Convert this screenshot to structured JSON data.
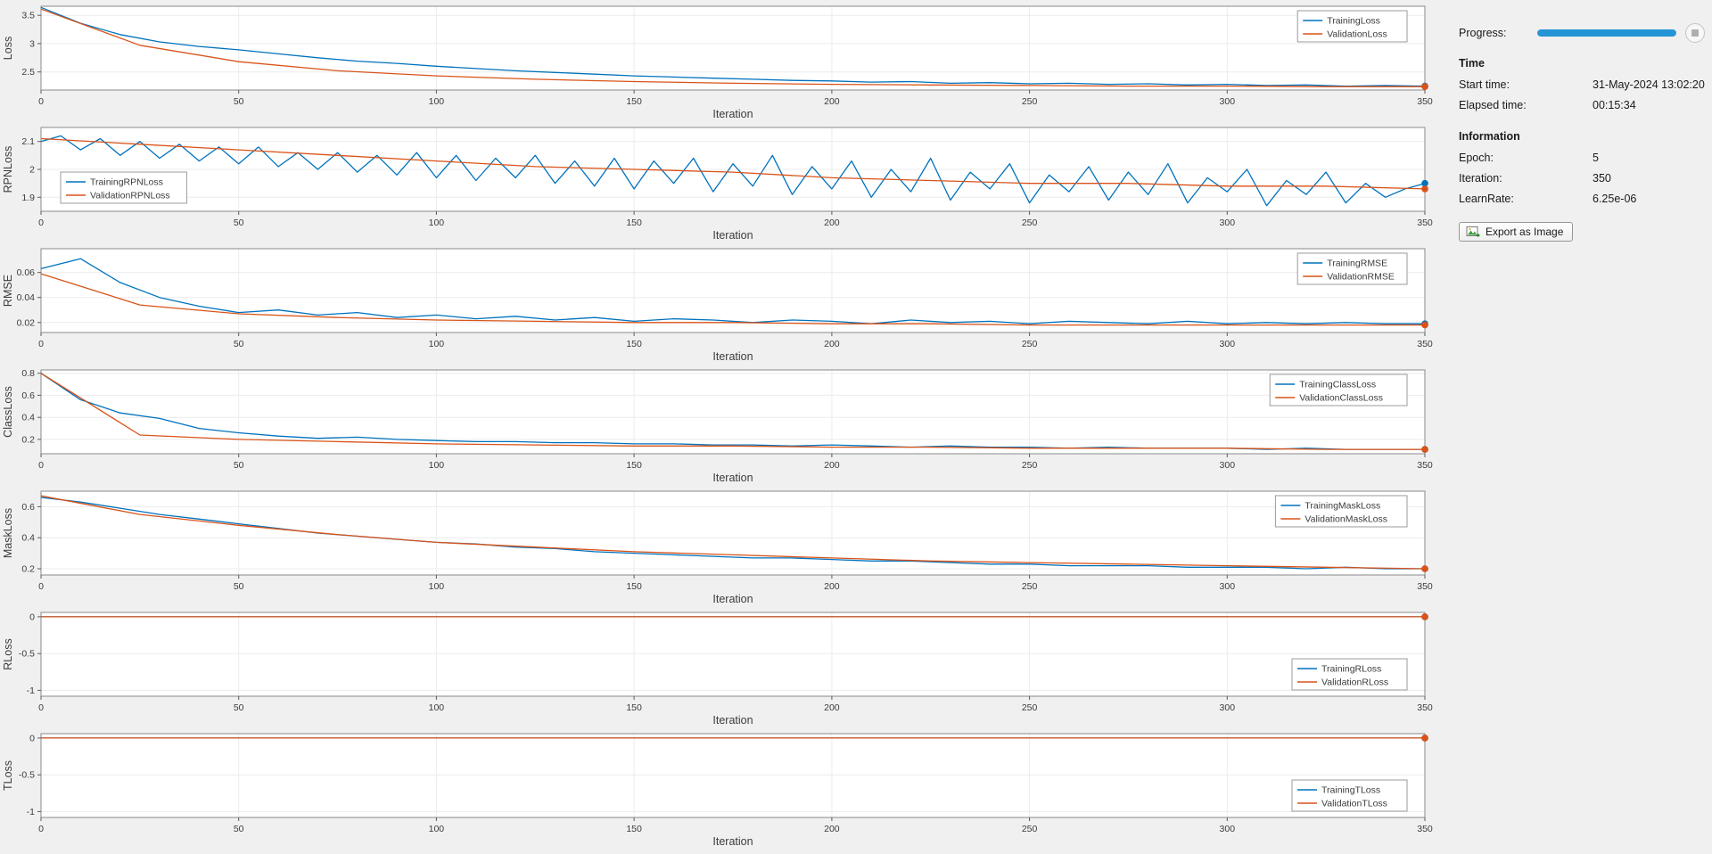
{
  "colors": {
    "training": "#0072BD",
    "validation": "#D95319",
    "progress_bar": "#2595d6",
    "background": "#f0f0f0"
  },
  "panel": {
    "progress_label": "Progress:",
    "progress_percent": 100,
    "stop_button": "stop",
    "sections": [
      {
        "header": "Time",
        "rows": [
          {
            "label": "Start time:",
            "value": "31-May-2024 13:02:20"
          },
          {
            "label": "Elapsed time:",
            "value": "00:15:34"
          }
        ]
      },
      {
        "header": "Information",
        "rows": [
          {
            "label": "Epoch:",
            "value": "5"
          },
          {
            "label": "Iteration:",
            "value": "350"
          },
          {
            "label": "LearnRate:",
            "value": "6.25e-06"
          }
        ]
      }
    ],
    "export_button": "Export as Image"
  },
  "chart_data": [
    {
      "type": "line",
      "ylabel": "Loss",
      "xlabel": "Iteration",
      "xlim": [
        0,
        350
      ],
      "xticks": [
        0,
        50,
        100,
        150,
        200,
        250,
        300,
        350
      ],
      "ylim": [
        2.18,
        3.66
      ],
      "yticks": [
        2.5,
        3,
        3.5
      ],
      "legend": {
        "position": "top-right",
        "entries": [
          "TrainingLoss",
          "ValidationLoss"
        ]
      },
      "series": [
        {
          "name": "TrainingLoss",
          "color_key": "training",
          "x_step": 10,
          "values": [
            3.64,
            3.36,
            3.16,
            3.03,
            2.95,
            2.89,
            2.82,
            2.75,
            2.69,
            2.65,
            2.6,
            2.56,
            2.52,
            2.49,
            2.46,
            2.43,
            2.41,
            2.39,
            2.37,
            2.35,
            2.34,
            2.32,
            2.33,
            2.3,
            2.31,
            2.29,
            2.3,
            2.28,
            2.29,
            2.27,
            2.28,
            2.26,
            2.27,
            2.25,
            2.26,
            2.25
          ]
        },
        {
          "name": "ValidationLoss",
          "color_key": "validation",
          "x_step": 25,
          "values": [
            3.61,
            2.97,
            2.68,
            2.52,
            2.43,
            2.37,
            2.33,
            2.3,
            2.28,
            2.27,
            2.26,
            2.25,
            2.25,
            2.24,
            2.24
          ]
        }
      ]
    },
    {
      "type": "line",
      "ylabel": "RPNLoss",
      "xlabel": "Iteration",
      "xlim": [
        0,
        350
      ],
      "xticks": [
        0,
        50,
        100,
        150,
        200,
        250,
        300,
        350
      ],
      "ylim": [
        1.85,
        2.15
      ],
      "yticks": [
        1.9,
        2,
        2.1
      ],
      "legend": {
        "position": "bottom-left",
        "entries": [
          "TrainingRPNLoss",
          "ValidationRPNLoss"
        ]
      },
      "series": [
        {
          "name": "TrainingRPNLoss",
          "color_key": "training",
          "x_step": 5,
          "values": [
            2.1,
            2.12,
            2.07,
            2.11,
            2.05,
            2.1,
            2.04,
            2.09,
            2.03,
            2.08,
            2.02,
            2.08,
            2.01,
            2.06,
            2.0,
            2.06,
            1.99,
            2.05,
            1.98,
            2.06,
            1.97,
            2.05,
            1.96,
            2.04,
            1.97,
            2.05,
            1.95,
            2.03,
            1.94,
            2.04,
            1.93,
            2.03,
            1.95,
            2.04,
            1.92,
            2.02,
            1.94,
            2.05,
            1.91,
            2.01,
            1.93,
            2.03,
            1.9,
            2.0,
            1.92,
            2.04,
            1.89,
            1.99,
            1.93,
            2.02,
            1.88,
            1.98,
            1.92,
            2.01,
            1.89,
            1.99,
            1.91,
            2.02,
            1.88,
            1.97,
            1.92,
            2.0,
            1.87,
            1.96,
            1.91,
            1.99,
            1.88,
            1.95,
            1.9,
            1.93,
            1.95
          ]
        },
        {
          "name": "ValidationRPNLoss",
          "color_key": "validation",
          "x_step": 25,
          "values": [
            2.11,
            2.09,
            2.07,
            2.05,
            2.03,
            2.01,
            2.0,
            1.99,
            1.97,
            1.96,
            1.95,
            1.95,
            1.94,
            1.94,
            1.93
          ]
        }
      ]
    },
    {
      "type": "line",
      "ylabel": "RMSE",
      "xlabel": "Iteration",
      "xlim": [
        0,
        350
      ],
      "xticks": [
        0,
        50,
        100,
        150,
        200,
        250,
        300,
        350
      ],
      "ylim": [
        0.012,
        0.079
      ],
      "yticks": [
        0.02,
        0.04,
        0.06
      ],
      "legend": {
        "position": "top-right",
        "entries": [
          "TrainingRMSE",
          "ValidationRMSE"
        ]
      },
      "series": [
        {
          "name": "TrainingRMSE",
          "color_key": "training",
          "x_step": 10,
          "values": [
            0.063,
            0.071,
            0.052,
            0.04,
            0.033,
            0.028,
            0.03,
            0.026,
            0.028,
            0.024,
            0.026,
            0.023,
            0.025,
            0.022,
            0.024,
            0.021,
            0.023,
            0.022,
            0.02,
            0.022,
            0.021,
            0.019,
            0.022,
            0.02,
            0.021,
            0.019,
            0.021,
            0.02,
            0.019,
            0.021,
            0.019,
            0.02,
            0.019,
            0.02,
            0.019,
            0.019
          ]
        },
        {
          "name": "ValidationRMSE",
          "color_key": "validation",
          "x_step": 25,
          "values": [
            0.059,
            0.034,
            0.027,
            0.024,
            0.022,
            0.021,
            0.02,
            0.02,
            0.019,
            0.019,
            0.018,
            0.018,
            0.018,
            0.018,
            0.018
          ]
        }
      ]
    },
    {
      "type": "line",
      "ylabel": "ClassLoss",
      "xlabel": "Iteration",
      "xlim": [
        0,
        350
      ],
      "xticks": [
        0,
        50,
        100,
        150,
        200,
        250,
        300,
        350
      ],
      "ylim": [
        0.07,
        0.83
      ],
      "yticks": [
        0.2,
        0.4,
        0.6,
        0.8
      ],
      "legend": {
        "position": "top-right",
        "entries": [
          "TrainingClassLoss",
          "ValidationClassLoss"
        ]
      },
      "series": [
        {
          "name": "TrainingClassLoss",
          "color_key": "training",
          "x_step": 10,
          "values": [
            0.8,
            0.56,
            0.44,
            0.39,
            0.3,
            0.26,
            0.23,
            0.21,
            0.22,
            0.2,
            0.19,
            0.18,
            0.18,
            0.17,
            0.17,
            0.16,
            0.16,
            0.15,
            0.15,
            0.14,
            0.15,
            0.14,
            0.13,
            0.14,
            0.13,
            0.13,
            0.12,
            0.13,
            0.12,
            0.12,
            0.12,
            0.11,
            0.12,
            0.11,
            0.11,
            0.11
          ]
        },
        {
          "name": "ValidationClassLoss",
          "color_key": "validation",
          "x_step": 25,
          "values": [
            0.8,
            0.24,
            0.2,
            0.18,
            0.16,
            0.15,
            0.14,
            0.14,
            0.13,
            0.13,
            0.12,
            0.12,
            0.12,
            0.11,
            0.11
          ]
        }
      ]
    },
    {
      "type": "line",
      "ylabel": "MaskLoss",
      "xlabel": "Iteration",
      "xlim": [
        0,
        350
      ],
      "xticks": [
        0,
        50,
        100,
        150,
        200,
        250,
        300,
        350
      ],
      "ylim": [
        0.16,
        0.7
      ],
      "yticks": [
        0.2,
        0.4,
        0.6
      ],
      "legend": {
        "position": "top-right",
        "entries": [
          "TrainingMaskLoss",
          "ValidationMaskLoss"
        ]
      },
      "series": [
        {
          "name": "TrainingMaskLoss",
          "color_key": "training",
          "x_step": 10,
          "values": [
            0.66,
            0.63,
            0.59,
            0.55,
            0.52,
            0.49,
            0.46,
            0.43,
            0.41,
            0.39,
            0.37,
            0.36,
            0.34,
            0.33,
            0.31,
            0.3,
            0.29,
            0.28,
            0.27,
            0.27,
            0.26,
            0.25,
            0.25,
            0.24,
            0.23,
            0.23,
            0.22,
            0.22,
            0.22,
            0.21,
            0.21,
            0.21,
            0.2,
            0.21,
            0.2,
            0.2
          ]
        },
        {
          "name": "ValidationMaskLoss",
          "color_key": "validation",
          "x_step": 25,
          "values": [
            0.67,
            0.55,
            0.48,
            0.42,
            0.37,
            0.34,
            0.31,
            0.29,
            0.27,
            0.25,
            0.24,
            0.23,
            0.22,
            0.21,
            0.2
          ]
        }
      ]
    },
    {
      "type": "line",
      "ylabel": "RLoss",
      "xlabel": "Iteration",
      "xlim": [
        0,
        350
      ],
      "xticks": [
        0,
        50,
        100,
        150,
        200,
        250,
        300,
        350
      ],
      "ylim": [
        -1.08,
        0.06
      ],
      "yticks": [
        -1,
        -0.5,
        0
      ],
      "legend": {
        "position": "bottom-right",
        "entries": [
          "TrainingRLoss",
          "ValidationRLoss"
        ]
      },
      "series": [
        {
          "name": "TrainingRLoss",
          "color_key": "training",
          "x_step": 350,
          "values": [
            0,
            0
          ]
        },
        {
          "name": "ValidationRLoss",
          "color_key": "validation",
          "x_step": 350,
          "values": [
            0,
            0
          ]
        }
      ]
    },
    {
      "type": "line",
      "ylabel": "TLoss",
      "xlabel": "Iteration",
      "xlim": [
        0,
        350
      ],
      "xticks": [
        0,
        50,
        100,
        150,
        200,
        250,
        300,
        350
      ],
      "ylim": [
        -1.08,
        0.06
      ],
      "yticks": [
        -1,
        -0.5,
        0
      ],
      "legend": {
        "position": "bottom-right",
        "entries": [
          "TrainingTLoss",
          "ValidationTLoss"
        ]
      },
      "series": [
        {
          "name": "TrainingTLoss",
          "color_key": "training",
          "x_step": 350,
          "values": [
            0,
            0
          ]
        },
        {
          "name": "ValidationTLoss",
          "color_key": "validation",
          "x_step": 350,
          "values": [
            0,
            0
          ]
        }
      ]
    }
  ]
}
